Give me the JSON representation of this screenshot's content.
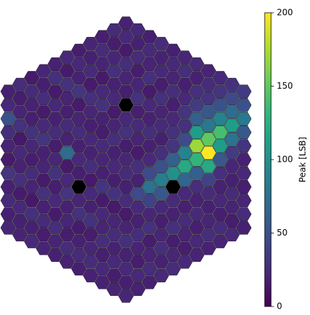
{
  "chart_data": {
    "type": "hexcamera",
    "colormap": "viridis",
    "null_color": "#000000",
    "clim": [
      0,
      200
    ],
    "cticks": [
      0,
      50,
      100,
      150,
      200
    ],
    "colorbar_label": "Peak [LSB]",
    "values": [
      [
        18,
        22,
        50,
        26,
        20,
        14,
        30,
        19,
        24,
        17,
        21
      ],
      [
        25,
        16,
        20,
        28,
        13,
        22,
        19,
        27,
        15,
        23,
        18,
        20
      ],
      [
        14,
        24,
        19,
        17,
        29,
        21,
        16,
        25,
        20,
        13,
        27,
        18,
        22
      ],
      [
        21,
        17,
        26,
        15,
        23,
        30,
        18,
        20,
        14,
        28,
        19,
        24,
        16,
        20
      ],
      [
        19,
        27,
        14,
        22,
        18,
        25,
        16,
        21,
        29,
        17,
        23,
        15,
        26,
        20,
        18
      ],
      [
        23,
        15,
        28,
        20,
        17,
        24,
        19,
        70,
        14,
        22,
        30,
        18,
        21,
        16,
        25,
        19
      ],
      [
        16,
        22,
        19,
        31,
        14,
        20,
        25,
        18,
        23,
        17,
        null,
        21,
        28,
        15,
        19,
        24,
        17
      ],
      [
        20,
        18,
        24,
        15,
        27,
        21,
        17,
        23,
        19,
        26,
        14,
        22,
        18,
        29,
        16,
        21,
        25,
        19
      ],
      [
        17,
        25,
        20,
        14,
        22,
        28,
        19,
        16,
        24,
        21,
        18,
        30,
        15,
        23,
        20,
        26,
        17,
        22,
        19
      ],
      [
        24,
        16,
        21,
        27,
        19,
        23,
        15,
        20,
        26,
        18,
        22,
        17,
        29,
        14,
        21,
        25,
        19,
        23,
        16,
        20
      ],
      [
        19,
        23,
        15,
        26,
        20,
        17,
        null,
        22,
        28,
        16,
        21,
        24,
        18,
        25,
        14,
        20,
        27,
        19,
        23,
        17,
        21
      ],
      [
        22,
        18,
        25,
        16,
        21,
        29,
        17,
        24,
        20,
        15,
        27,
        19,
        45,
        23,
        18,
        26,
        20,
        16,
        22,
        19
      ],
      [
        17,
        24,
        20,
        27,
        15,
        22,
        19,
        26,
        18,
        23,
        45,
        75,
        40,
        21,
        28,
        16,
        20,
        25,
        18
      ],
      [
        25,
        19,
        22,
        16,
        28,
        20,
        24,
        18,
        27,
        50,
        85,
        55,
        23,
        17,
        21,
        26,
        19,
        22
      ],
      [
        18,
        23,
        20,
        26,
        17,
        22,
        29,
        31,
        60,
        100,
        null,
        24,
        19,
        27,
        16,
        21,
        25
      ],
      [
        21,
        26,
        17,
        23,
        30,
        28,
        45,
        90,
        120,
        65,
        22,
        18,
        25,
        20,
        16,
        23
      ],
      [
        24,
        18,
        27,
        35,
        60,
        110,
        170,
        130,
        60,
        26,
        19,
        23,
        17,
        22,
        20
      ],
      [
        20,
        25,
        30,
        55,
        80,
        150,
        200,
        120,
        40,
        24,
        18,
        21,
        26,
        19
      ],
      [
        23,
        30,
        50,
        90,
        140,
        110,
        55,
        27,
        19,
        22,
        17,
        25,
        20
      ],
      [
        28,
        45,
        70,
        110,
        75,
        35,
        21,
        18,
        24,
        20,
        16,
        22
      ],
      [
        35,
        50,
        80,
        55,
        30,
        19,
        23,
        17,
        21,
        25,
        18
      ]
    ]
  }
}
